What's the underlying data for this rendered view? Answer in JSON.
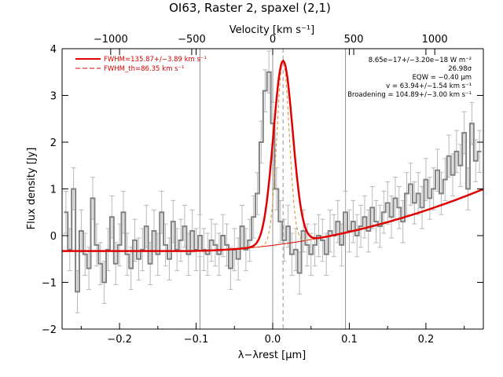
{
  "chart_data": {
    "type": "line",
    "title": "OI63, Raster 2, spaxel (2,1)",
    "xlabel": "λ−λrest [μm]",
    "ylabel": "Flux density [Jy]",
    "top_xlabel": "Velocity [km s⁻¹]",
    "xlim": [
      -0.275,
      0.275
    ],
    "ylim": [
      -2,
      4
    ],
    "top_xlim": [
      -1300,
      1300
    ],
    "x_ticks": [
      -0.2,
      -0.1,
      0.0,
      0.1,
      0.2
    ],
    "x_tick_labels": [
      "−0.2",
      "−0.1",
      "0.0",
      "0.1",
      "0.2"
    ],
    "y_ticks": [
      -2,
      -1,
      0,
      1,
      2,
      3,
      4
    ],
    "y_tick_labels": [
      "−2",
      "−1",
      "0",
      "1",
      "2",
      "3",
      "4"
    ],
    "top_ticks": [
      -1000,
      -500,
      0,
      500,
      1000
    ],
    "top_tick_labels": [
      "−1000",
      "−500",
      "0",
      "500",
      "1000"
    ],
    "vlines": [
      -0.095,
      0.0,
      0.095
    ],
    "center_line": 0.0135,
    "legend": [
      {
        "label": "FWHM=135.87+/−3.89 km s⁻¹",
        "style": "solid"
      },
      {
        "label": "FWHM_th=86.35 km s⁻¹",
        "style": "dashed"
      }
    ],
    "annotations": [
      "8.65e−17+/−3.20e−18 W m⁻²",
      "26.98σ",
      "EQW = −0.40 μm",
      "v = 63.94+/−1.54 km s⁻¹",
      "Broadening = 104.89+/−3.00 km s⁻¹"
    ],
    "colors": {
      "data": "#808080",
      "fit": "#e00000",
      "thermal": "#d98a2a",
      "axis": "#000000",
      "vline": "#909090"
    },
    "series": [
      {
        "type": "step",
        "x": [
          -0.27,
          -0.265,
          -0.26,
          -0.255,
          -0.25,
          -0.245,
          -0.24,
          -0.235,
          -0.23,
          -0.225,
          -0.22,
          -0.215,
          -0.21,
          -0.205,
          -0.2,
          -0.195,
          -0.19,
          -0.185,
          -0.18,
          -0.175,
          -0.17,
          -0.165,
          -0.16,
          -0.155,
          -0.15,
          -0.145,
          -0.14,
          -0.135,
          -0.13,
          -0.125,
          -0.12,
          -0.115,
          -0.11,
          -0.105,
          -0.1,
          -0.095,
          -0.09,
          -0.085,
          -0.08,
          -0.075,
          -0.07,
          -0.065,
          -0.06,
          -0.055,
          -0.05,
          -0.045,
          -0.04,
          -0.035,
          -0.03,
          -0.025,
          -0.02,
          -0.015,
          -0.01,
          -0.005,
          0.0,
          0.005,
          0.01,
          0.015,
          0.02,
          0.025,
          0.03,
          0.035,
          0.04,
          0.045,
          0.05,
          0.055,
          0.06,
          0.065,
          0.07,
          0.075,
          0.08,
          0.085,
          0.09,
          0.095,
          0.1,
          0.105,
          0.11,
          0.115,
          0.12,
          0.125,
          0.13,
          0.135,
          0.14,
          0.145,
          0.15,
          0.155,
          0.16,
          0.165,
          0.17,
          0.175,
          0.18,
          0.185,
          0.19,
          0.195,
          0.2,
          0.205,
          0.21,
          0.215,
          0.22,
          0.225,
          0.23,
          0.235,
          0.24,
          0.245,
          0.25,
          0.255,
          0.26,
          0.265,
          0.27
        ],
        "y": [
          0.5,
          -0.3,
          1.0,
          -1.2,
          0.1,
          -0.4,
          -0.7,
          0.8,
          -0.2,
          -0.6,
          -1.0,
          -0.3,
          0.4,
          -0.6,
          -0.2,
          0.5,
          -0.4,
          -0.7,
          -0.1,
          -0.5,
          -0.3,
          0.2,
          -0.6,
          0.1,
          -0.4,
          0.5,
          -0.2,
          -0.5,
          0.3,
          -0.3,
          -0.1,
          0.2,
          -0.4,
          0.1,
          -0.3,
          0.0,
          -0.3,
          -0.4,
          -0.1,
          -0.2,
          -0.4,
          0.0,
          -0.2,
          -0.7,
          -0.3,
          -0.5,
          0.2,
          -0.3,
          -0.1,
          0.4,
          0.9,
          2.0,
          3.1,
          3.5,
          2.4,
          1.0,
          0.3,
          -0.1,
          0.2,
          -0.4,
          -0.3,
          -0.8,
          0.1,
          -0.2,
          -0.4,
          -0.2,
          0.0,
          -0.1,
          -0.4,
          0.1,
          0.0,
          0.3,
          -0.2,
          0.5,
          0.1,
          0.3,
          0.0,
          0.2,
          0.4,
          0.1,
          0.6,
          0.3,
          0.2,
          0.5,
          0.7,
          0.4,
          0.8,
          0.6,
          0.3,
          0.9,
          1.1,
          0.7,
          0.9,
          0.6,
          1.2,
          0.8,
          1.0,
          1.4,
          0.9,
          1.2,
          1.7,
          1.3,
          1.8,
          1.5,
          2.2,
          1.0,
          2.4,
          1.6,
          1.8
        ],
        "err": 0.45
      },
      {
        "type": "fit",
        "name": "FWHM=135.87+/−3.89 km s⁻¹",
        "amp": 3.92,
        "center": 0.0135,
        "sigma": 0.0126,
        "continuum": "quadratic"
      },
      {
        "type": "thermal",
        "name": "FWHM_th=86.35 km s⁻¹",
        "amp": 3.92,
        "center": 0.0135,
        "sigma": 0.008
      }
    ]
  }
}
